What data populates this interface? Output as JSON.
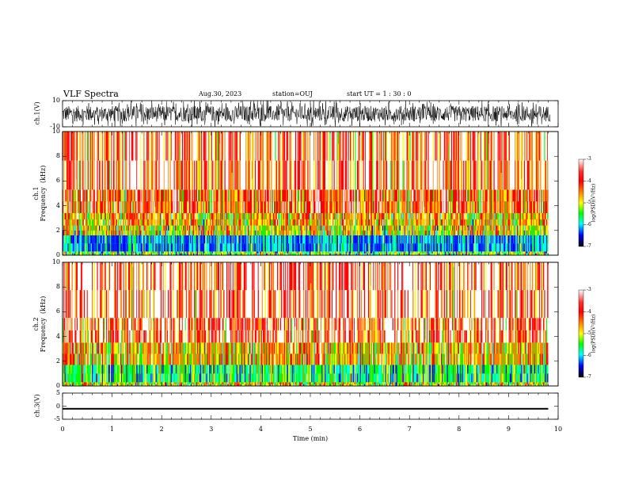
{
  "header": {
    "title": "VLF Spectra",
    "date": "Aug.30, 2023",
    "station": "station=OUJ",
    "start": "start  UT =   1 : 30 : 0"
  },
  "colors": {
    "white": "#ffffff",
    "red": "#ff0000",
    "orange": "#ff8000",
    "yellow": "#ffff00",
    "green": "#00ff00",
    "cyan": "#00ffff",
    "blue": "#0000ff",
    "black": "#000000"
  },
  "chart_data": [
    {
      "type": "line",
      "name": "waveform-ch1",
      "ylabel": "ch.1(V)",
      "ylim": [
        -10,
        10
      ],
      "yticks": [
        "10",
        "-10"
      ],
      "xlim": [
        0,
        10
      ],
      "amplitude_range": [
        -6,
        6
      ]
    },
    {
      "type": "heatmap",
      "name": "spectrogram-ch1",
      "ylabel": "ch.1\nFrequency  (kHz)",
      "ylim": [
        0,
        10
      ],
      "yticks": [
        "0",
        "2",
        "4",
        "6",
        "8",
        "10"
      ],
      "xlim": [
        0,
        10
      ],
      "data_end_min": 9.8,
      "bands": [
        {
          "f": [
            0,
            0.3
          ],
          "level": -4.7
        },
        {
          "f": [
            0.3,
            1.6
          ],
          "level": -5.4
        },
        {
          "f": [
            1.6,
            2.4
          ],
          "level": -4.3
        },
        {
          "f": [
            2.4,
            3.4
          ],
          "level": -4.0
        },
        {
          "f": [
            3.4,
            5.3
          ],
          "level": -3.6
        },
        {
          "f": [
            5.3,
            10
          ],
          "level": -3.3
        }
      ],
      "colorbar": {
        "label": "log(PSD)(V²/Hz)",
        "range": [
          -7,
          -3
        ],
        "ticks": [
          "-3",
          "-4",
          "-5",
          "-6",
          "-7"
        ]
      }
    },
    {
      "type": "heatmap",
      "name": "spectrogram-ch2",
      "ylabel": "ch.2\nFrequency  (kHz)",
      "ylim": [
        0,
        10
      ],
      "yticks": [
        "0",
        "2",
        "4",
        "6",
        "8",
        "10"
      ],
      "xlim": [
        0,
        10
      ],
      "data_end_min": 9.8,
      "bands": [
        {
          "f": [
            0,
            0.3
          ],
          "level": -4.3
        },
        {
          "f": [
            0.3,
            1.7
          ],
          "level": -4.8
        },
        {
          "f": [
            1.7,
            3.5
          ],
          "level": -4.0
        },
        {
          "f": [
            3.5,
            5.5
          ],
          "level": -3.4
        },
        {
          "f": [
            5.5,
            10
          ],
          "level": -3.2
        }
      ],
      "colorbar": {
        "label": "log(PSD)(V²/Hz)",
        "range": [
          -7,
          -3
        ],
        "ticks": [
          "-3",
          "-4",
          "-5",
          "-6",
          "-7"
        ]
      }
    },
    {
      "type": "line",
      "name": "waveform-ch3",
      "ylabel": "ch.3(V)",
      "ylim": [
        -5,
        5
      ],
      "yticks": [
        "5",
        "0",
        "-5"
      ],
      "xlim": [
        0,
        10
      ],
      "amplitude_range": [
        -1.3,
        -0.7
      ],
      "xticks": [
        "0",
        "1",
        "2",
        "3",
        "4",
        "5",
        "6",
        "7",
        "8",
        "9",
        "10"
      ],
      "xlabel": "Time  (min)"
    }
  ]
}
